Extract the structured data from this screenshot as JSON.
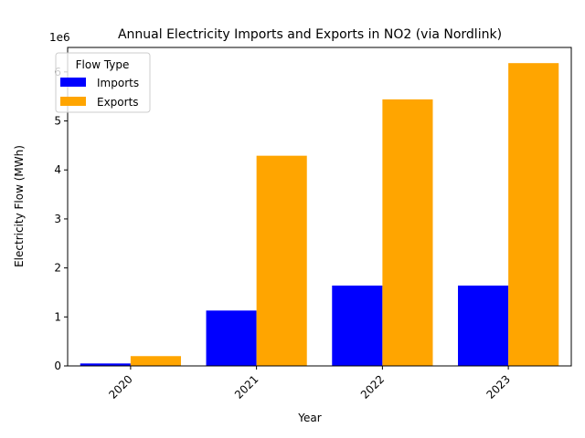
{
  "chart_data": {
    "type": "bar",
    "title": "Annual Electricity Imports and Exports in NO2 (via Nordlink)",
    "xlabel": "Year",
    "ylabel": "Electricity Flow (MWh)",
    "y_offset_label": "1e6",
    "categories": [
      "2020",
      "2021",
      "2022",
      "2023"
    ],
    "series": [
      {
        "name": "Imports",
        "color": "#0000ff",
        "values": [
          50000,
          1130000,
          1640000,
          1640000
        ]
      },
      {
        "name": "Exports",
        "color": "#ffa500",
        "values": [
          200000,
          4290000,
          5440000,
          6180000
        ]
      }
    ],
    "ylim": [
      0,
      6500000
    ],
    "yticks": [
      0,
      1000000,
      2000000,
      3000000,
      4000000,
      5000000,
      6000000
    ],
    "ytick_labels": [
      "0",
      "1",
      "2",
      "3",
      "4",
      "5",
      "6"
    ],
    "legend": {
      "title": "Flow Type",
      "placement": "top-left"
    },
    "grid": false
  }
}
